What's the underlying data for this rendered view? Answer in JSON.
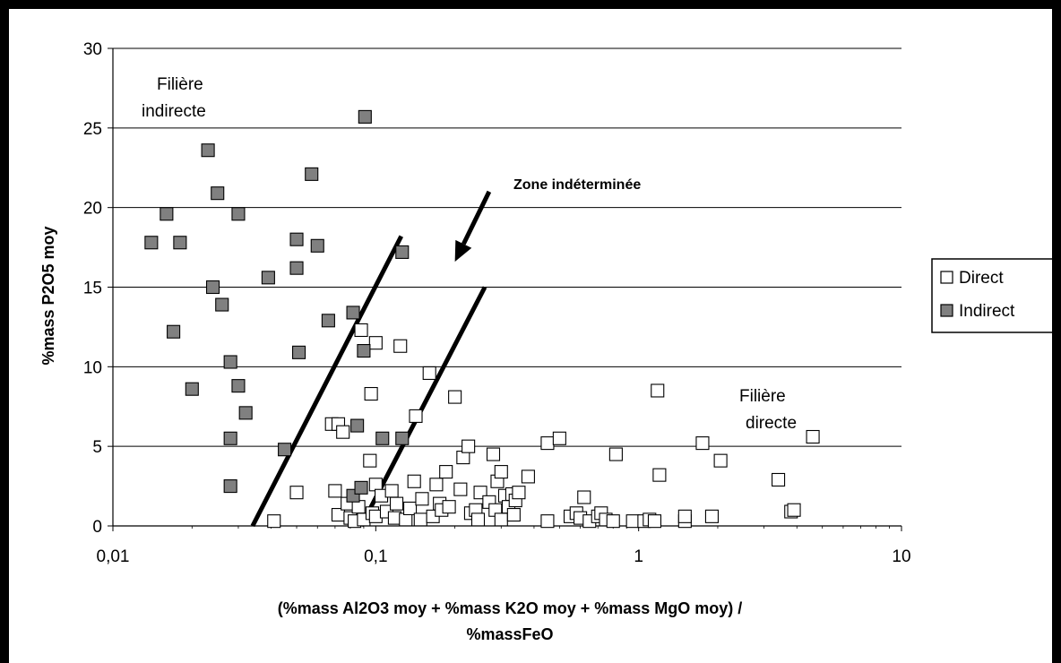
{
  "chart_data": {
    "type": "scatter",
    "xlabel_line1": "(%mass Al2O3 moy + %mass K2O moy + %mass MgO moy) /",
    "xlabel_line2": "%massFeO",
    "ylabel": "%mass P2O5 moy",
    "x_scale": "log",
    "xlim": [
      0.01,
      10
    ],
    "ylim": [
      0,
      30
    ],
    "x_ticks": [
      0.01,
      0.1,
      1,
      10
    ],
    "x_tick_labels": [
      "0,01",
      "0,1",
      "1",
      "10"
    ],
    "y_ticks": [
      0,
      5,
      10,
      15,
      20,
      25,
      30
    ],
    "y_tick_labels": [
      "0",
      "5",
      "10",
      "15",
      "20",
      "25",
      "30"
    ],
    "grid": "horizontal",
    "legend_position": "right",
    "annotations": {
      "indirect_zone_line1": "Filière",
      "indirect_zone_line2": "indirecte",
      "direct_zone_line1": "Filière",
      "direct_zone_line2": "directe",
      "undetermined_zone": "Zone indéterminée"
    },
    "boundary_lines": [
      {
        "x1": 0.034,
        "y1": 0,
        "x2": 0.125,
        "y2": 18.2
      },
      {
        "x1": 0.088,
        "y1": 0,
        "x2": 0.26,
        "y2": 15.0
      }
    ],
    "arrow": {
      "x1": 0.27,
      "y1": 21.0,
      "x2": 0.2,
      "y2": 16.6
    },
    "series": [
      {
        "name": "Direct",
        "marker": "square-open",
        "color": "#ffffff",
        "points": [
          [
            0.041,
            0.3
          ],
          [
            0.05,
            2.1
          ],
          [
            0.068,
            6.4
          ],
          [
            0.07,
            2.2
          ],
          [
            0.072,
            0.7
          ],
          [
            0.072,
            6.4
          ],
          [
            0.075,
            5.9
          ],
          [
            0.078,
            1.4
          ],
          [
            0.08,
            0.5
          ],
          [
            0.083,
            0.3
          ],
          [
            0.086,
            1.2
          ],
          [
            0.088,
            12.3
          ],
          [
            0.09,
            0.4
          ],
          [
            0.095,
            4.1
          ],
          [
            0.096,
            8.3
          ],
          [
            0.097,
            0.8
          ],
          [
            0.1,
            11.5
          ],
          [
            0.1,
            2.6
          ],
          [
            0.1,
            0.6
          ],
          [
            0.105,
            1.9
          ],
          [
            0.11,
            0.9
          ],
          [
            0.115,
            2.2
          ],
          [
            0.118,
            0.5
          ],
          [
            0.12,
            1.4
          ],
          [
            0.124,
            11.3
          ],
          [
            0.13,
            0.4
          ],
          [
            0.135,
            1.1
          ],
          [
            0.14,
            2.8
          ],
          [
            0.142,
            6.9
          ],
          [
            0.148,
            0.4
          ],
          [
            0.15,
            1.7
          ],
          [
            0.16,
            9.6
          ],
          [
            0.165,
            0.6
          ],
          [
            0.17,
            2.6
          ],
          [
            0.175,
            1.4
          ],
          [
            0.178,
            1.0
          ],
          [
            0.185,
            3.4
          ],
          [
            0.19,
            1.2
          ],
          [
            0.2,
            8.1
          ],
          [
            0.21,
            2.3
          ],
          [
            0.215,
            4.3
          ],
          [
            0.225,
            5.0
          ],
          [
            0.23,
            0.8
          ],
          [
            0.24,
            1.0
          ],
          [
            0.245,
            0.4
          ],
          [
            0.25,
            2.1
          ],
          [
            0.27,
            1.5
          ],
          [
            0.28,
            4.5
          ],
          [
            0.285,
            1.0
          ],
          [
            0.29,
            2.8
          ],
          [
            0.3,
            3.4
          ],
          [
            0.3,
            0.4
          ],
          [
            0.31,
            1.9
          ],
          [
            0.32,
            1.2
          ],
          [
            0.33,
            2.0
          ],
          [
            0.335,
            0.7
          ],
          [
            0.34,
            1.6
          ],
          [
            0.35,
            2.1
          ],
          [
            0.38,
            3.1
          ],
          [
            0.45,
            5.2
          ],
          [
            0.45,
            0.3
          ],
          [
            0.5,
            5.5
          ],
          [
            0.55,
            0.6
          ],
          [
            0.58,
            0.8
          ],
          [
            0.6,
            0.5
          ],
          [
            0.62,
            1.8
          ],
          [
            0.65,
            0.3
          ],
          [
            0.7,
            0.6
          ],
          [
            0.72,
            0.8
          ],
          [
            0.75,
            0.4
          ],
          [
            0.8,
            0.3
          ],
          [
            0.82,
            4.5
          ],
          [
            0.95,
            0.3
          ],
          [
            1.05,
            0.3
          ],
          [
            1.1,
            0.4
          ],
          [
            1.15,
            0.3
          ],
          [
            1.18,
            8.5
          ],
          [
            1.2,
            3.2
          ],
          [
            1.5,
            0.3
          ],
          [
            1.5,
            0.6
          ],
          [
            1.75,
            5.2
          ],
          [
            1.9,
            0.6
          ],
          [
            2.05,
            4.1
          ],
          [
            3.4,
            2.9
          ],
          [
            3.8,
            0.9
          ],
          [
            3.9,
            1.0
          ],
          [
            4.6,
            5.6
          ]
        ]
      },
      {
        "name": "Indirect",
        "marker": "square-filled",
        "color": "#808080",
        "points": [
          [
            0.014,
            17.8
          ],
          [
            0.016,
            19.6
          ],
          [
            0.017,
            12.2
          ],
          [
            0.018,
            17.8
          ],
          [
            0.02,
            8.6
          ],
          [
            0.023,
            23.6
          ],
          [
            0.024,
            15.0
          ],
          [
            0.025,
            20.9
          ],
          [
            0.026,
            13.9
          ],
          [
            0.028,
            10.3
          ],
          [
            0.028,
            5.5
          ],
          [
            0.028,
            2.5
          ],
          [
            0.03,
            19.6
          ],
          [
            0.03,
            8.8
          ],
          [
            0.032,
            7.1
          ],
          [
            0.039,
            15.6
          ],
          [
            0.045,
            4.8
          ],
          [
            0.05,
            18.0
          ],
          [
            0.05,
            16.2
          ],
          [
            0.051,
            10.9
          ],
          [
            0.057,
            22.1
          ],
          [
            0.06,
            17.6
          ],
          [
            0.066,
            12.9
          ],
          [
            0.082,
            13.4
          ],
          [
            0.082,
            1.9
          ],
          [
            0.085,
            6.3
          ],
          [
            0.088,
            2.4
          ],
          [
            0.09,
            11.0
          ],
          [
            0.091,
            25.7
          ],
          [
            0.106,
            5.5
          ],
          [
            0.126,
            17.2
          ],
          [
            0.126,
            5.5
          ]
        ]
      }
    ]
  }
}
